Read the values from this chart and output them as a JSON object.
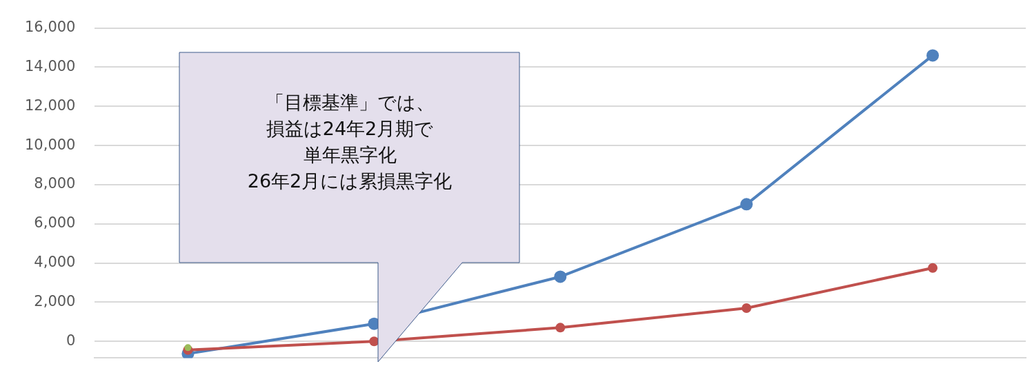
{
  "chart_data": {
    "type": "line",
    "categories": [
      null,
      null,
      null,
      null,
      null
    ],
    "series": [
      {
        "color": "#4f81bd",
        "values": [
          -630,
          900,
          3300,
          7000,
          14600
        ]
      },
      {
        "color": "#c0504d",
        "values": [
          -440,
          0,
          700,
          1700,
          3750
        ]
      },
      {
        "color": "#9bbb59",
        "values": [
          -320,
          null,
          null,
          null,
          null
        ]
      }
    ],
    "ylim": [
      -850,
      16000
    ],
    "yticks": [
      {
        "value": 0,
        "label": "0"
      },
      {
        "value": 2000,
        "label": "2,000"
      },
      {
        "value": 4000,
        "label": "4,000"
      },
      {
        "value": 6000,
        "label": "6,000"
      },
      {
        "value": 8000,
        "label": "8,000"
      },
      {
        "value": 10000,
        "label": "10,000"
      },
      {
        "value": 12000,
        "label": "12,000"
      },
      {
        "value": 14000,
        "label": "14,000"
      },
      {
        "value": 16000,
        "label": "16,000"
      }
    ],
    "grid": "y",
    "tick_labels": "y",
    "marker": "circle",
    "line_style": "solid",
    "legend": false,
    "annotations": [
      "「目標基準」では、",
      "損益は24年2月期で",
      "単年黒字化",
      "26年2月には累損黒字化"
    ]
  }
}
